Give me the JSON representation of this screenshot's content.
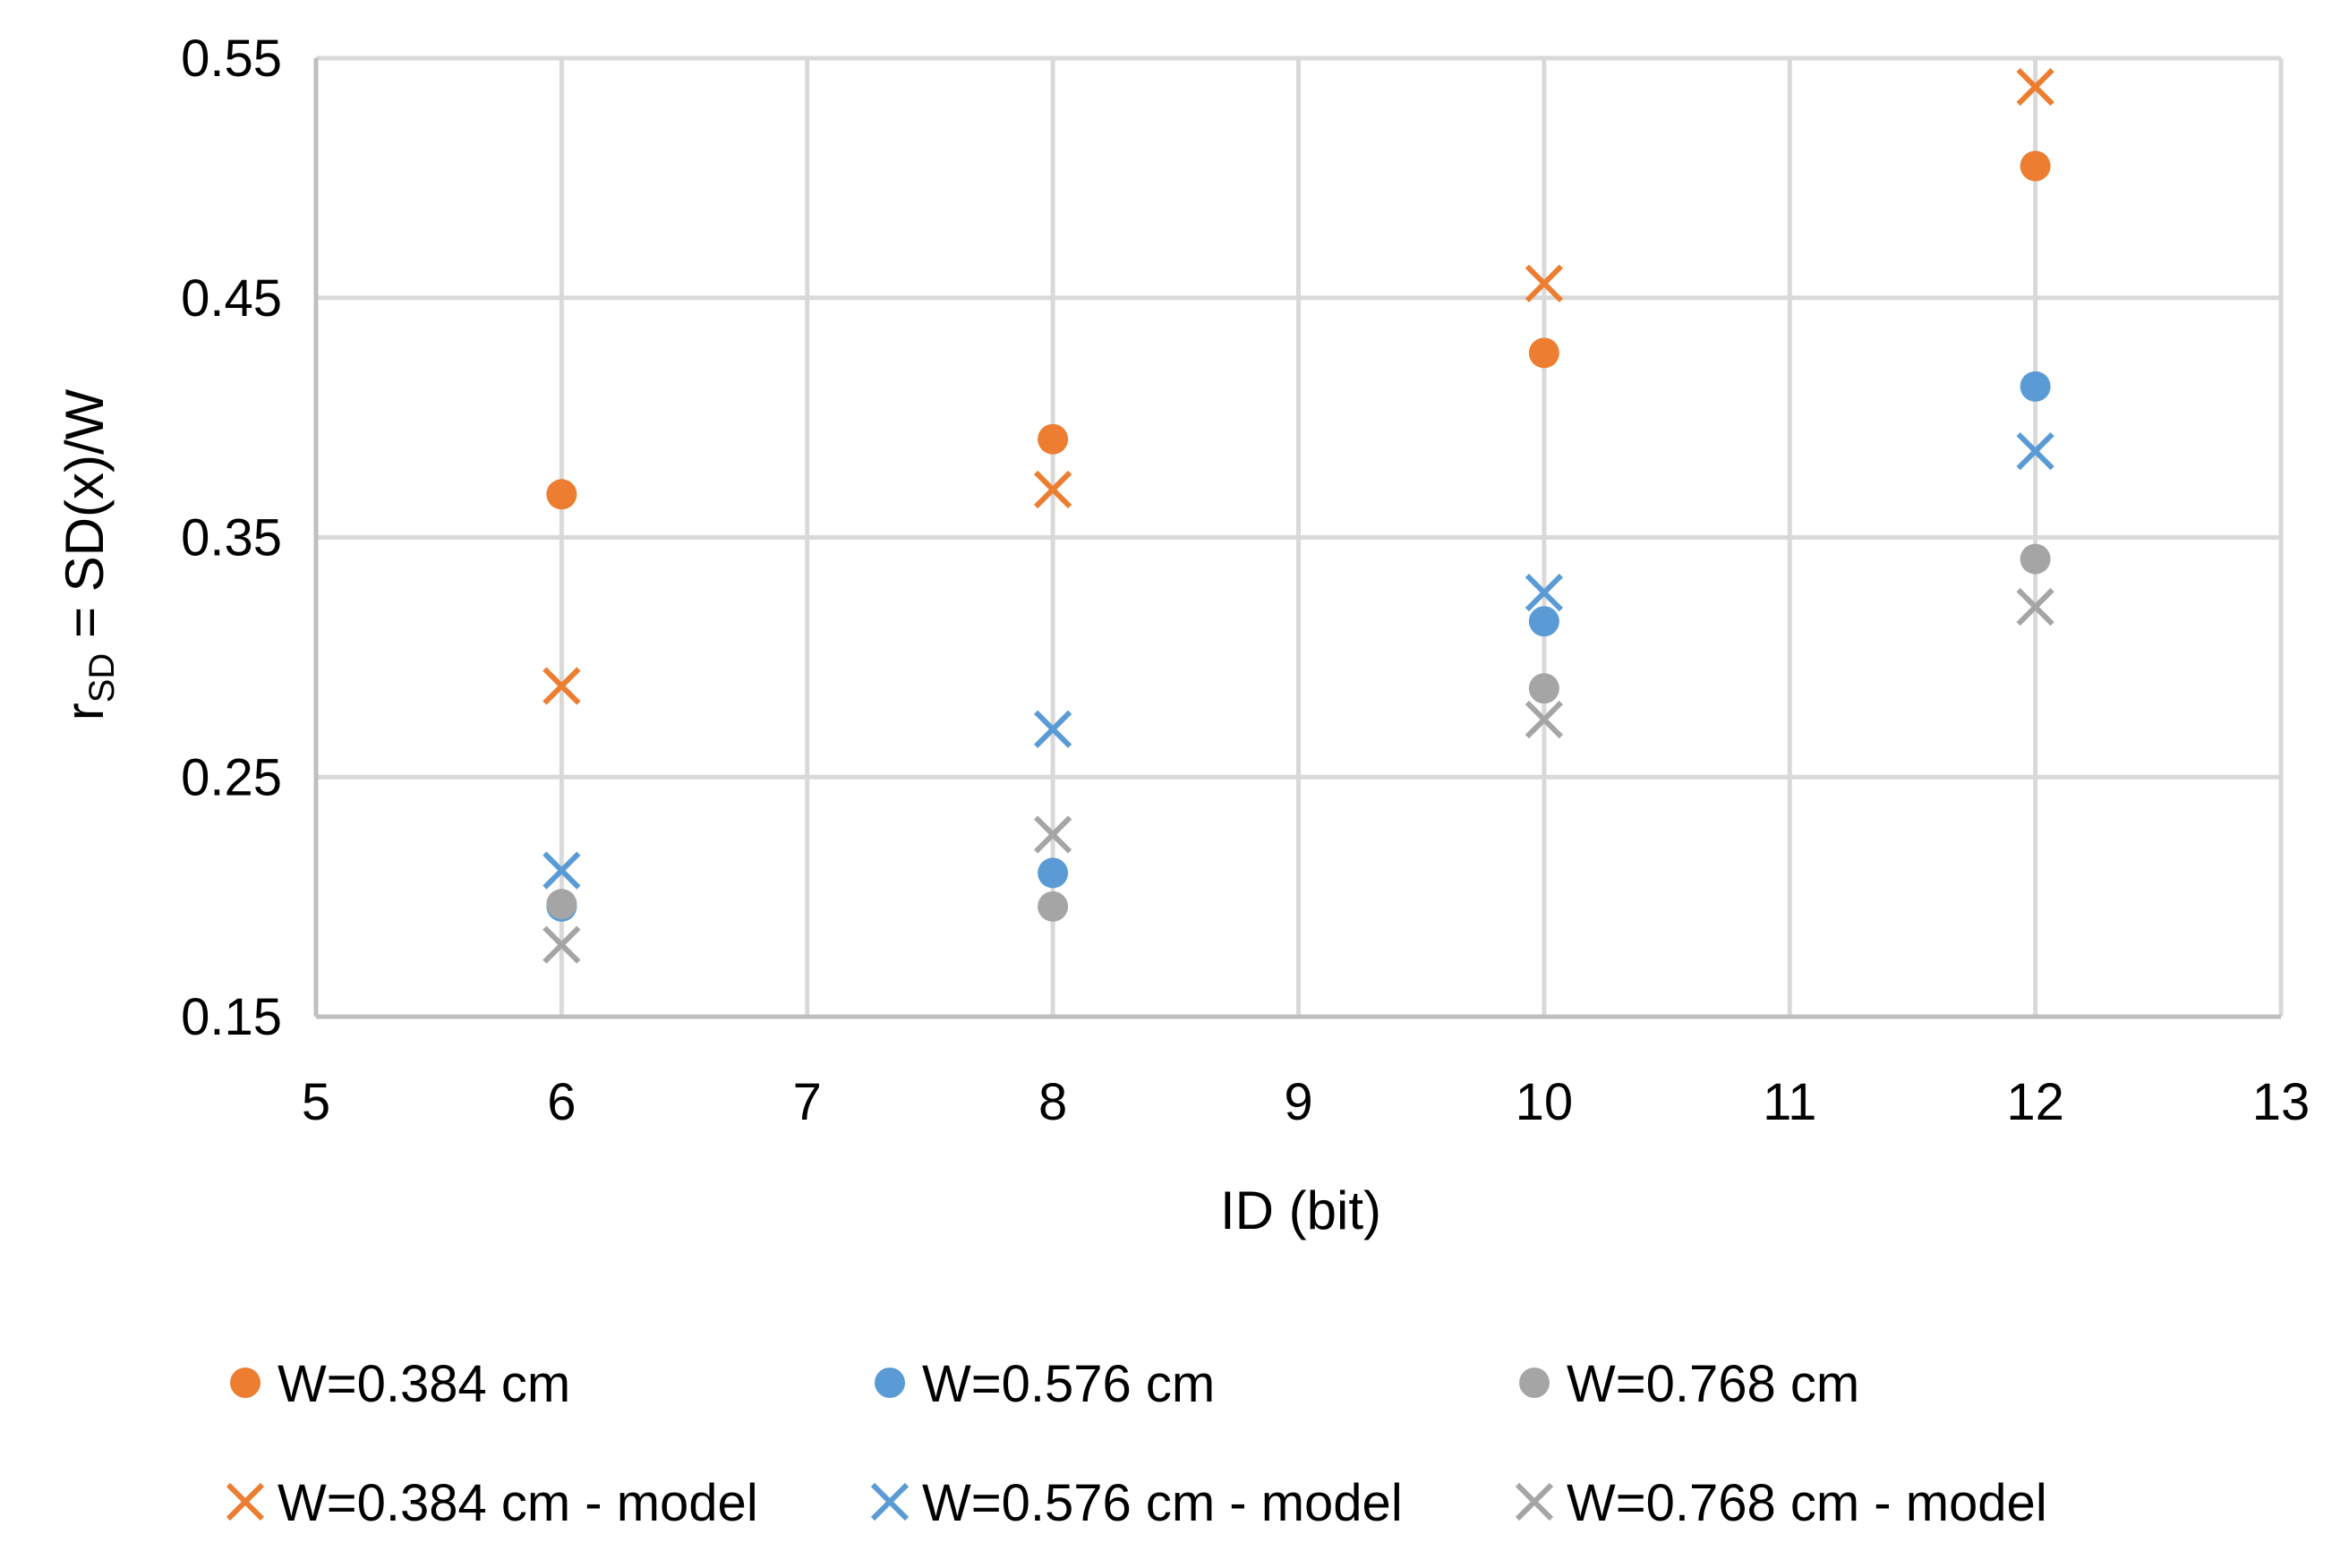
{
  "chart_data": {
    "type": "scatter",
    "title": "",
    "xlabel": "ID (bit)",
    "ylabel": "r",
    "ylabel_subscript": "SD",
    "ylabel_rest": " = SD(x)/W",
    "xlim": [
      5,
      13
    ],
    "ylim": [
      0.15,
      0.55
    ],
    "x_ticks": [
      5,
      6,
      7,
      8,
      9,
      10,
      11,
      12,
      13
    ],
    "x_tick_labels": [
      "5",
      "6",
      "7",
      "8",
      "9",
      "10",
      "11",
      "12",
      "13"
    ],
    "y_ticks": [
      0.15,
      0.25,
      0.35,
      0.45,
      0.55
    ],
    "y_tick_labels": [
      "0.15",
      "0.25",
      "0.35",
      "0.45",
      "0.55"
    ],
    "grid": true,
    "legend_position": "bottom",
    "series": [
      {
        "name": "W=0.384 cm",
        "marker": "circle",
        "color": "#ed7d31",
        "x": [
          6,
          8,
          10,
          12
        ],
        "y": [
          0.368,
          0.391,
          0.427,
          0.505
        ]
      },
      {
        "name": "W=0.576 cm",
        "marker": "circle",
        "color": "#5b9bd5",
        "x": [
          6,
          8,
          10,
          12
        ],
        "y": [
          0.196,
          0.21,
          0.315,
          0.413
        ]
      },
      {
        "name": "W=0.768 cm",
        "marker": "circle",
        "color": "#a5a5a5",
        "x": [
          6,
          8,
          10,
          12
        ],
        "y": [
          0.197,
          0.196,
          0.287,
          0.341
        ]
      },
      {
        "name": "W=0.384 cm - model",
        "marker": "x",
        "color": "#ed7d31",
        "x": [
          6,
          8,
          10,
          12
        ],
        "y": [
          0.288,
          0.37,
          0.456,
          0.538
        ]
      },
      {
        "name": "W=0.576 cm - model",
        "marker": "x",
        "color": "#5b9bd5",
        "x": [
          6,
          8,
          10,
          12
        ],
        "y": [
          0.211,
          0.27,
          0.327,
          0.386
        ]
      },
      {
        "name": "W=0.768 cm - model",
        "marker": "x",
        "color": "#a5a5a5",
        "x": [
          6,
          8,
          10,
          12
        ],
        "y": [
          0.18,
          0.226,
          0.274,
          0.321
        ]
      }
    ]
  }
}
